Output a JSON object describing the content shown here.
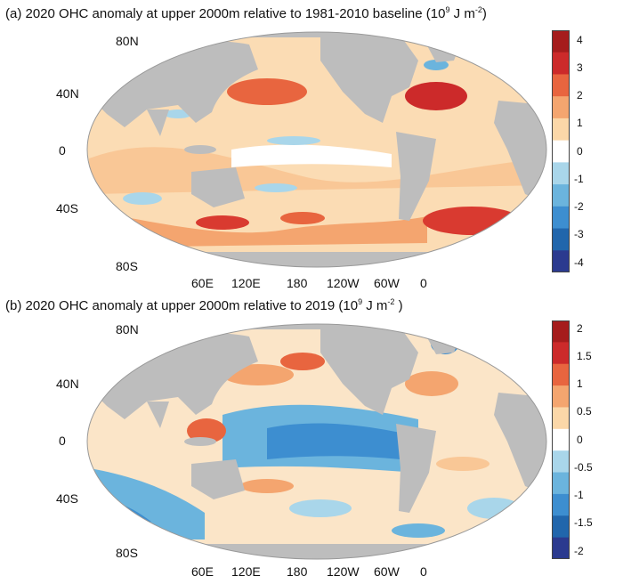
{
  "panels": [
    {
      "id": "a",
      "title_main": "(a)  2020 OHC anomaly at upper 2000m relative to 1981-2010 baseline (10",
      "title_exp1": "9",
      "title_mid": " J m",
      "title_exp2": "-2",
      "title_end": ")",
      "lat_labels": [
        "80N",
        "40N",
        "0",
        "40S",
        "80S"
      ],
      "lon_labels": [
        "60E",
        "120E",
        "180",
        "120W",
        "60W",
        "0"
      ],
      "colorbar_ticks": [
        "4",
        "3",
        "2",
        "1",
        "0",
        "-1",
        "-2",
        "-3",
        "-4"
      ]
    },
    {
      "id": "b",
      "title_main": "(b)  2020 OHC anomaly at upper 2000m relative to 2019 (10",
      "title_exp1": "9",
      "title_mid": " J m",
      "title_exp2": "-2",
      "title_end": " )",
      "lat_labels": [
        "80N",
        "40N",
        "0",
        "40S",
        "80S"
      ],
      "lon_labels": [
        "60E",
        "120E",
        "180",
        "120W",
        "60W",
        "0"
      ],
      "colorbar_ticks": [
        "2",
        "1.5",
        "1",
        "0.5",
        "0",
        "-0.5",
        "-1",
        "-1.5",
        "-2"
      ]
    }
  ],
  "colors": {
    "land": "#bdbdbd",
    "scale": [
      "#2b3a8f",
      "#2166ac",
      "#3d8ed0",
      "#6bb4dd",
      "#a9d6ea",
      "#ffffff",
      "#fbd7a8",
      "#f4a56f",
      "#e8653f",
      "#cc2a2a",
      "#a51c1c"
    ]
  },
  "map_data": {
    "projection": "robinson",
    "central_longitude": "180"
  }
}
